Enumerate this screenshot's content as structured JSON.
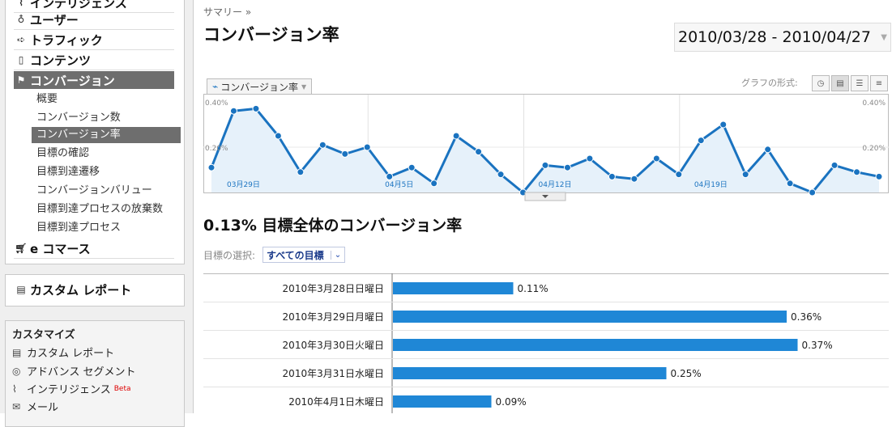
{
  "sidebar": {
    "cut_item": "インテリジェンス",
    "nav": [
      {
        "label": "ユーザー",
        "icon": "user-icon"
      },
      {
        "label": "トラフィック",
        "icon": "traffic-icon"
      },
      {
        "label": "コンテンツ",
        "icon": "content-icon"
      },
      {
        "label": "コンバージョン",
        "icon": "flag-icon"
      }
    ],
    "sub_items": [
      "概要",
      "コンバージョン数",
      "コンバージョン率",
      "目標の確認",
      "目標到達遷移",
      "コンバージョンバリュー",
      "目標到達プロセスの放棄数",
      "目標到達プロセス"
    ],
    "ecommerce": {
      "label": "e コマース",
      "icon": "cart-icon"
    },
    "custom_report": {
      "label": "カスタム レポート",
      "icon": "report-icon"
    },
    "customize": {
      "title": "カスタマイズ",
      "items": [
        {
          "label": "カスタム レポート",
          "icon": "report-icon"
        },
        {
          "label": "アドバンス セグメント",
          "icon": "segment-icon"
        },
        {
          "label": "インテリジェンス",
          "icon": "intelligence-icon",
          "badge": "Beta"
        },
        {
          "label": "メール",
          "icon": "mail-icon"
        }
      ]
    }
  },
  "header": {
    "breadcrumb": "サマリー »",
    "title": "コンバージョン率",
    "date_range": "2010/03/28 - 2010/04/27"
  },
  "graph": {
    "metric_tab": "コンバージョン率",
    "format_label": "グラフの形式:",
    "y_max_label": "0.40%",
    "y_mid_label": "0.20%"
  },
  "summary": {
    "total_line": "0.13% 目標全体のコンバージョン率",
    "goal_label": "目標の選択:",
    "goal_value": "すべての目標"
  },
  "chart_data": [
    {
      "type": "area",
      "title": "",
      "ylim": [
        0,
        0.4
      ],
      "x_tick_labels": [
        "03月29日",
        "04月5日",
        "04月12日",
        "04月19日"
      ],
      "y_tick_labels": [
        "0.40%",
        "0.20%"
      ],
      "x": [
        "2010-03-28",
        "2010-03-29",
        "2010-03-30",
        "2010-03-31",
        "2010-04-01",
        "2010-04-02",
        "2010-04-03",
        "2010-04-04",
        "2010-04-05",
        "2010-04-06",
        "2010-04-07",
        "2010-04-08",
        "2010-04-09",
        "2010-04-10",
        "2010-04-11",
        "2010-04-12",
        "2010-04-13",
        "2010-04-14",
        "2010-04-15",
        "2010-04-16",
        "2010-04-17",
        "2010-04-18",
        "2010-04-19",
        "2010-04-20",
        "2010-04-21",
        "2010-04-22",
        "2010-04-23",
        "2010-04-24",
        "2010-04-25",
        "2010-04-26",
        "2010-04-27"
      ],
      "values": [
        0.11,
        0.36,
        0.37,
        0.25,
        0.09,
        0.21,
        0.17,
        0.2,
        0.07,
        0.11,
        0.04,
        0.25,
        0.18,
        0.08,
        0.0,
        0.12,
        0.11,
        0.15,
        0.07,
        0.06,
        0.15,
        0.08,
        0.23,
        0.3,
        0.08,
        0.19,
        0.04,
        0.0,
        0.12,
        0.09,
        0.07
      ],
      "grid": true
    },
    {
      "type": "bar",
      "orientation": "horizontal",
      "categories": [
        "2010年3月28日日曜日",
        "2010年3月29日月曜日",
        "2010年3月30日火曜日",
        "2010年3月31日水曜日",
        "2010年4月1日木曜日"
      ],
      "values": [
        0.11,
        0.36,
        0.37,
        0.25,
        0.09
      ],
      "value_labels": [
        "0.11%",
        "0.36%",
        "0.37%",
        "0.25%",
        "0.09%"
      ]
    }
  ],
  "colors": {
    "accent": "#1f87d6",
    "line": "#1a73c0",
    "fill": "#e6f1fa",
    "nav_active": "#6e6e6e"
  }
}
